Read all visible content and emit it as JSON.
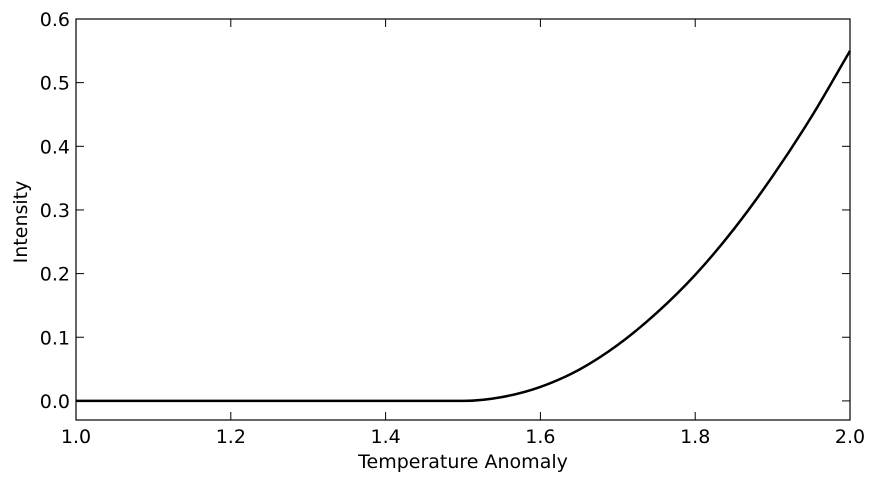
{
  "chart_data": {
    "type": "line",
    "title": "",
    "xlabel": "Temperature Anomaly",
    "ylabel": "Intensity",
    "xlim": [
      1.0,
      2.0
    ],
    "ylim": [
      -0.03,
      0.6
    ],
    "xticks": [
      1.0,
      1.2,
      1.4,
      1.6,
      1.8,
      2.0
    ],
    "yticks": [
      0.0,
      0.1,
      0.2,
      0.3,
      0.4,
      0.5,
      0.6
    ],
    "xtick_labels": [
      "1.0",
      "1.2",
      "1.4",
      "1.6",
      "1.8",
      "2.0"
    ],
    "ytick_labels": [
      "0.0",
      "0.1",
      "0.2",
      "0.3",
      "0.4",
      "0.5",
      "0.6"
    ],
    "grid": false,
    "legend": "none",
    "line_color": "#000000",
    "series": [
      {
        "x": [
          1.0,
          1.1,
          1.2,
          1.3,
          1.4,
          1.5,
          1.55,
          1.6,
          1.65,
          1.7,
          1.75,
          1.8,
          1.85,
          1.9,
          1.95,
          2.0
        ],
        "y": [
          0.0,
          0.0,
          0.0,
          0.0,
          0.0,
          0.0,
          0.006,
          0.022,
          0.049,
          0.088,
          0.138,
          0.198,
          0.27,
          0.353,
          0.446,
          0.55
        ]
      }
    ]
  }
}
